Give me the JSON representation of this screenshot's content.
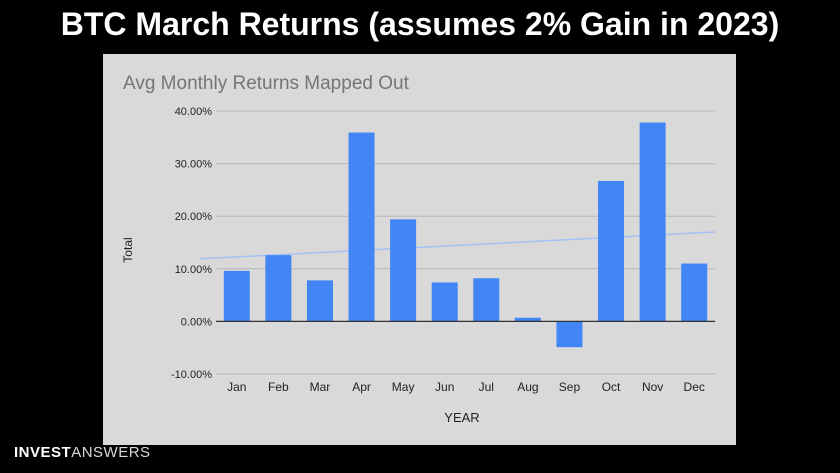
{
  "slide": {
    "title": "BTC March Returns (assumes 2% Gain in 2023)"
  },
  "brand": {
    "part1": "INVEST",
    "part2": "ANSWERS"
  },
  "colors": {
    "background": "#000000",
    "panel": "#d9d9d9",
    "bar": "#4285f4",
    "trendline": "#a4c2f4",
    "grid": "#b7b7b7",
    "zero_line": "#333333"
  },
  "chart_data": {
    "type": "bar",
    "title": "Avg Monthly Returns Mapped Out",
    "xlabel": "YEAR",
    "ylabel": "Total",
    "categories": [
      "Jan",
      "Feb",
      "Mar",
      "Apr",
      "May",
      "Jun",
      "Jul",
      "Aug",
      "Sep",
      "Oct",
      "Nov",
      "Dec"
    ],
    "values": [
      9.6,
      12.6,
      7.8,
      35.9,
      19.4,
      7.4,
      8.2,
      0.7,
      -4.9,
      26.7,
      37.8,
      11.0
    ],
    "ylim": [
      -10,
      40
    ],
    "yticks": [
      "-10.00%",
      "0.00%",
      "10.00%",
      "20.00%",
      "30.00%",
      "40.00%"
    ],
    "ytick_values": [
      -10,
      0,
      10,
      20,
      30,
      40
    ],
    "trendline": {
      "start": 11.9,
      "end": 17.0
    },
    "grid": true,
    "legend": "none"
  }
}
